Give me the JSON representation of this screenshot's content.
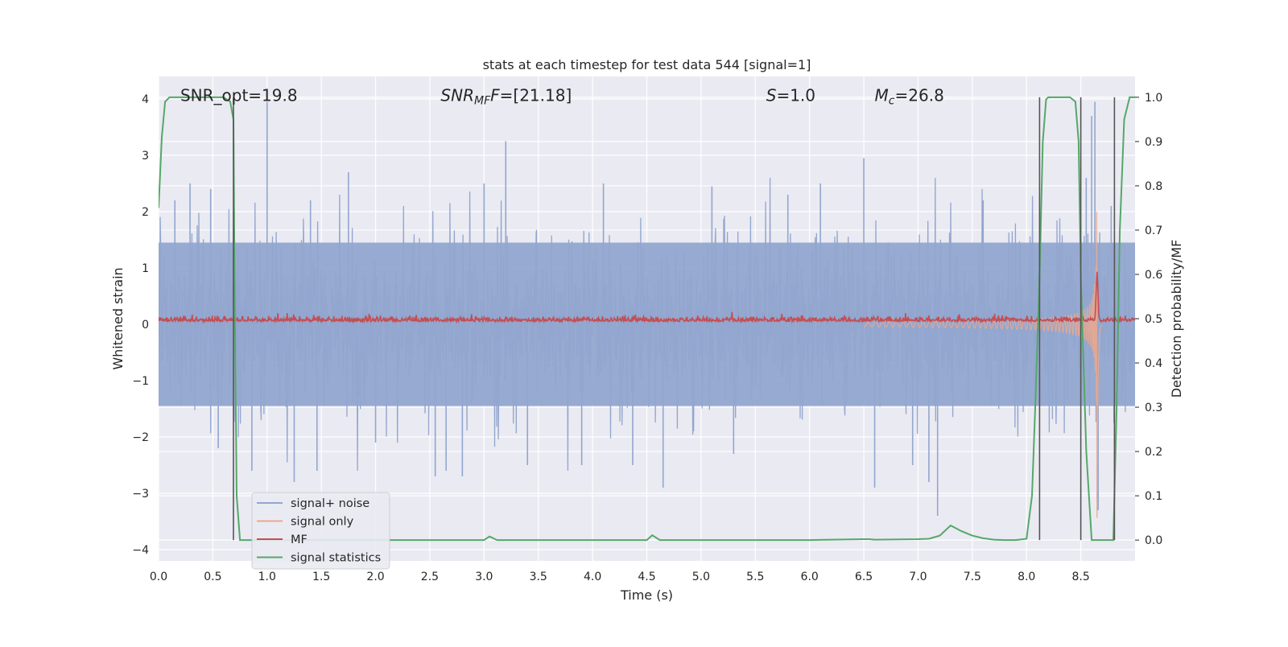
{
  "chart_data": {
    "type": "line",
    "title": "stats at each timestep for test data 544 [signal=1]",
    "xlabel": "Time (s)",
    "ylabel": "Whitened strain",
    "y2label": "Detection probability/MF",
    "xlim": [
      0.0,
      9.0
    ],
    "ylim": [
      -4.2,
      4.4
    ],
    "y2lim": [
      -0.047,
      1.047
    ],
    "xticks": [
      "0.0",
      "0.5",
      "1.0",
      "1.5",
      "2.0",
      "2.5",
      "3.0",
      "3.5",
      "4.0",
      "4.5",
      "5.0",
      "5.5",
      "6.0",
      "6.5",
      "7.0",
      "7.5",
      "8.0",
      "8.5"
    ],
    "yticks": [
      "4",
      "3",
      "2",
      "1",
      "0",
      "−1",
      "−2",
      "−3",
      "−4"
    ],
    "y2ticks": [
      "1.0",
      "0.9",
      "0.8",
      "0.7",
      "0.6",
      "0.5",
      "0.4",
      "0.3",
      "0.2",
      "0.1",
      "0.0"
    ],
    "grid": true,
    "legend_position": "lower-left",
    "annotations": [
      {
        "text": "SNR_opt=19.8",
        "x": 0.2,
        "y": 4.05
      },
      {
        "text": "SNR",
        "sub": "MF",
        "after": "F=[21.18]",
        "x": 2.6,
        "y": 4.05,
        "italic": true
      },
      {
        "text": "S",
        "after": "=1.0",
        "x": 5.6,
        "y": 4.05,
        "italic": true
      },
      {
        "text": "M",
        "sub": "c",
        "after": "=26.8",
        "x": 6.6,
        "y": 4.05,
        "italic": true
      }
    ],
    "vlines": [
      0.69,
      8.12,
      8.5,
      8.81
    ],
    "series": [
      {
        "name": "signal+ noise",
        "color": "#92a6cf",
        "axis": "left",
        "style": "noise",
        "envelope": 1.45,
        "spikes": [
          {
            "x": 0.15,
            "y": 2.2
          },
          {
            "x": 0.29,
            "y": 2.5
          },
          {
            "x": 0.48,
            "y": 2.4
          },
          {
            "x": 0.55,
            "y": -2.2
          },
          {
            "x": 0.69,
            "y": 2.0
          },
          {
            "x": 0.86,
            "y": -2.6
          },
          {
            "x": 1.0,
            "y": 3.95
          },
          {
            "x": 1.25,
            "y": -2.8
          },
          {
            "x": 1.4,
            "y": 2.2
          },
          {
            "x": 1.46,
            "y": -2.6
          },
          {
            "x": 1.75,
            "y": 2.7
          },
          {
            "x": 2.0,
            "y": -2.1
          },
          {
            "x": 2.55,
            "y": -2.7
          },
          {
            "x": 2.65,
            "y": -2.6
          },
          {
            "x": 2.8,
            "y": -2.7
          },
          {
            "x": 3.0,
            "y": 2.5
          },
          {
            "x": 3.2,
            "y": 3.25
          },
          {
            "x": 3.4,
            "y": -2.5
          },
          {
            "x": 3.9,
            "y": -2.5
          },
          {
            "x": 4.1,
            "y": 2.5
          },
          {
            "x": 4.37,
            "y": -2.5
          },
          {
            "x": 4.65,
            "y": -2.9
          },
          {
            "x": 5.1,
            "y": 2.45
          },
          {
            "x": 5.3,
            "y": -2.3
          },
          {
            "x": 5.8,
            "y": 2.3
          },
          {
            "x": 6.1,
            "y": 2.5
          },
          {
            "x": 6.5,
            "y": 2.95
          },
          {
            "x": 6.6,
            "y": -2.9
          },
          {
            "x": 6.95,
            "y": -2.5
          },
          {
            "x": 7.1,
            "y": -2.8
          },
          {
            "x": 7.18,
            "y": -3.4
          },
          {
            "x": 7.6,
            "y": 2.2
          },
          {
            "x": 8.55,
            "y": 2.6
          },
          {
            "x": 8.6,
            "y": 3.7
          },
          {
            "x": 8.63,
            "y": 3.95
          },
          {
            "x": 8.66,
            "y": -3.3
          },
          {
            "x": 8.78,
            "y": 2.1
          }
        ]
      },
      {
        "name": "signal only",
        "color": "#e9a88f",
        "axis": "left",
        "style": "chirp",
        "merger_time": 8.65,
        "peak_amplitude": 3.6
      },
      {
        "name": "MF",
        "color": "#c44e52",
        "axis": "left",
        "style": "mf",
        "baseline": 0.05,
        "peak": {
          "x": 8.65,
          "y": 0.9
        }
      },
      {
        "name": "signal statistics",
        "color": "#55a868",
        "axis": "right",
        "style": "line",
        "x": [
          0.0,
          0.03,
          0.06,
          0.1,
          0.15,
          0.2,
          0.3,
          0.4,
          0.5,
          0.6,
          0.66,
          0.69,
          0.7,
          0.72,
          0.75,
          0.8,
          1.0,
          1.5,
          2.0,
          2.5,
          3.0,
          3.05,
          3.12,
          3.5,
          4.0,
          4.5,
          4.55,
          4.62,
          5.0,
          5.5,
          6.0,
          6.5,
          6.55,
          6.6,
          7.0,
          7.1,
          7.2,
          7.3,
          7.4,
          7.5,
          7.6,
          7.7,
          7.8,
          7.9,
          8.0,
          8.05,
          8.08,
          8.12,
          8.15,
          8.18,
          8.2,
          8.25,
          8.3,
          8.4,
          8.45,
          8.48,
          8.5,
          8.55,
          8.6,
          8.65,
          8.7,
          8.75,
          8.8,
          8.83,
          8.86,
          8.9,
          8.95,
          9.0
        ],
        "y": [
          0.75,
          0.91,
          0.99,
          1.0,
          1.0,
          1.0,
          1.0,
          1.0,
          1.0,
          1.0,
          0.99,
          0.95,
          0.6,
          0.1,
          0.0,
          0.0,
          0.0,
          0.0,
          0.0,
          0.0,
          0.0,
          0.008,
          0.0,
          0.0,
          0.0,
          0.0,
          0.011,
          0.0,
          0.0,
          0.0,
          0.0,
          0.002,
          0.002,
          0.001,
          0.002,
          0.003,
          0.01,
          0.033,
          0.02,
          0.01,
          0.004,
          0.001,
          0.0,
          0.0,
          0.003,
          0.1,
          0.3,
          0.6,
          0.9,
          0.995,
          1.0,
          1.0,
          1.0,
          1.0,
          0.99,
          0.9,
          0.6,
          0.2,
          0.0,
          0.0,
          0.0,
          0.0,
          0.0,
          0.3,
          0.7,
          0.95,
          1.0,
          1.0
        ]
      }
    ]
  }
}
